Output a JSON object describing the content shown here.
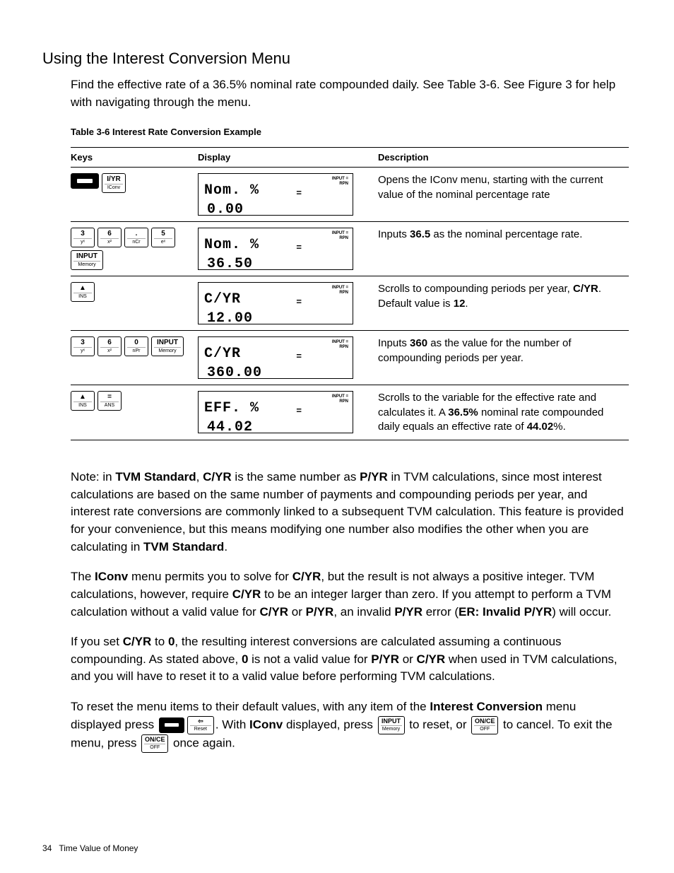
{
  "section_title": "Using the Interest Conversion Menu",
  "intro": "Find the effective rate of a 36.5% nominal rate compounded daily. See Table 3-6. See Figure 3 for help with navigating through the menu.",
  "table_caption": "Table 3-6 Interest Rate Conversion Example",
  "columns": {
    "keys": "Keys",
    "display": "Display",
    "description": "Description"
  },
  "lcd_indicators": {
    "top": "INPUT  =",
    "bot": "RPN"
  },
  "rows": [
    {
      "keys": [
        {
          "kind": "shift"
        },
        {
          "top": "I/YR",
          "bot": "IConv"
        }
      ],
      "display": {
        "label": "Nom. %",
        "value": "0.00",
        "eq": "="
      },
      "desc_html": "Opens the IConv menu, starting with the current value of the nominal percentage rate"
    },
    {
      "keys": [
        {
          "top": "3",
          "bot": "yˣ"
        },
        {
          "top": "6",
          "bot": "x²"
        },
        {
          "top": ".",
          "bot": "nCr"
        },
        {
          "top": "5",
          "bot": "eˣ"
        },
        {
          "top": "INPUT",
          "bot": "Memory",
          "wide": true
        }
      ],
      "display": {
        "label": "Nom. %",
        "value": "36.50",
        "eq": "="
      },
      "desc_html": "Inputs <b>36.5</b> as the nominal percentage rate."
    },
    {
      "keys": [
        {
          "top": "▲",
          "bot": "INS"
        }
      ],
      "display": {
        "label": "C/YR",
        "value": "12.00",
        "eq": "="
      },
      "desc_html": "Scrolls to compounding periods per year, <b>C/YR</b>. Default value is <b>12</b>."
    },
    {
      "keys": [
        {
          "top": "3",
          "bot": "yˣ"
        },
        {
          "top": "6",
          "bot": "x²"
        },
        {
          "top": "0",
          "bot": "nPr"
        },
        {
          "top": "INPUT",
          "bot": "Memory",
          "wide": true
        }
      ],
      "display": {
        "label": "C/YR",
        "value": "360.00",
        "eq": "="
      },
      "desc_html": "Inputs <b>360</b> as the value for the number of compounding periods per year."
    },
    {
      "keys": [
        {
          "top": "▲",
          "bot": "INS"
        },
        {
          "top": "=",
          "bot": "ANS"
        }
      ],
      "display": {
        "label": "EFF. %",
        "value": "44.02",
        "eq": "="
      },
      "desc_html": "Scrolls to the variable for the effective rate and calculates it. A <b>36.5%</b> nominal rate compounded daily equals an effective rate of <b>44.02</b>%."
    }
  ],
  "para1_html": "Note: in <b>TVM Standard</b>, <b>C/YR</b> is the same number as <b>P/YR</b> in TVM calculations, since most interest calculations are based on the same number of payments and compounding periods per year, and interest rate conversions are commonly linked to a subsequent TVM calculation. This feature is provided for your convenience, but this means modifying one number also modifies the other when you are calculating in <b>TVM Standard</b>.",
  "para2_html": "The <b>IConv</b> menu permits you to solve for <b>C/YR</b>, but the result is not always a positive integer. TVM calculations, however, require <b>C/YR</b> to be an integer larger than zero. If you attempt to perform a TVM calculation without a valid value for <b>C/YR</b> or <b>P/YR</b>, an invalid <b>P/YR</b> error (<b>ER: Invalid P/YR</b>) will occur.",
  "para3_html": "If you set <b>C/YR</b> to <b>0</b>, the resulting interest conversions are calculated assuming a continuous compounding. As stated above, <b>0</b> is not a valid value for <b>P/YR</b> or <b>C/YR</b> when used in TVM calculations, and you will have to reset it to a valid value before performing TVM calculations.",
  "para4": {
    "seg1": "To reset the menu items to their default values, with any item of the ",
    "bold1": "Interest Conversion",
    "seg2": " menu displayed press ",
    "key_reset": {
      "top": "⇦",
      "bot": "Reset"
    },
    "seg3": ". With ",
    "bold2": "IConv",
    "seg4": " displayed, press ",
    "key_input": {
      "top": "INPUT",
      "bot": "Memory"
    },
    "seg5": " to reset, or ",
    "key_once1": {
      "top": "ON/CE",
      "bot": "OFF"
    },
    "seg6": " to cancel. To exit the menu, press ",
    "key_once2": {
      "top": "ON/CE",
      "bot": "OFF"
    },
    "seg7": " once again."
  },
  "footer": {
    "page": "34",
    "chapter": "Time Value of Money"
  }
}
